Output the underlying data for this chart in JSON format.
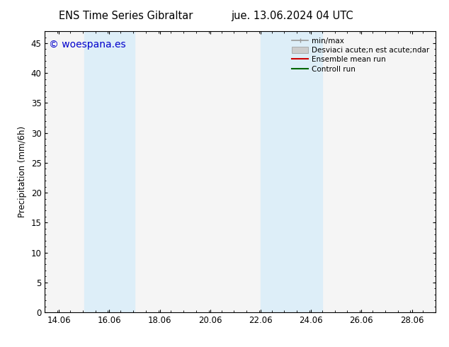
{
  "title_left": "ENS Time Series Gibraltar",
  "title_right": "jue. 13.06.2024 04 UTC",
  "ylabel": "Precipitation (mm/6h)",
  "watermark": "© woespana.es",
  "watermark_color": "#0000cc",
  "x_min": 13.5,
  "x_max": 29.0,
  "y_min": 0,
  "y_max": 47,
  "yticks": [
    0,
    5,
    10,
    15,
    20,
    25,
    30,
    35,
    40,
    45
  ],
  "xtick_labels": [
    "14.06",
    "16.06",
    "18.06",
    "20.06",
    "22.06",
    "24.06",
    "26.06",
    "28.06"
  ],
  "xtick_positions": [
    14.06,
    16.06,
    18.06,
    20.06,
    22.06,
    24.06,
    26.06,
    28.06
  ],
  "shaded_bands": [
    {
      "x_start": 15.06,
      "x_end": 17.06,
      "color": "#ddeef8",
      "alpha": 1.0
    },
    {
      "x_start": 22.06,
      "x_end": 24.5,
      "color": "#ddeef8",
      "alpha": 1.0
    }
  ],
  "background_color": "#ffffff",
  "plot_bg_color": "#f5f5f5",
  "tick_label_fontsize": 8.5,
  "axis_label_fontsize": 8.5,
  "title_fontsize": 10.5,
  "watermark_fontsize": 10,
  "legend_fontsize": 7.5
}
